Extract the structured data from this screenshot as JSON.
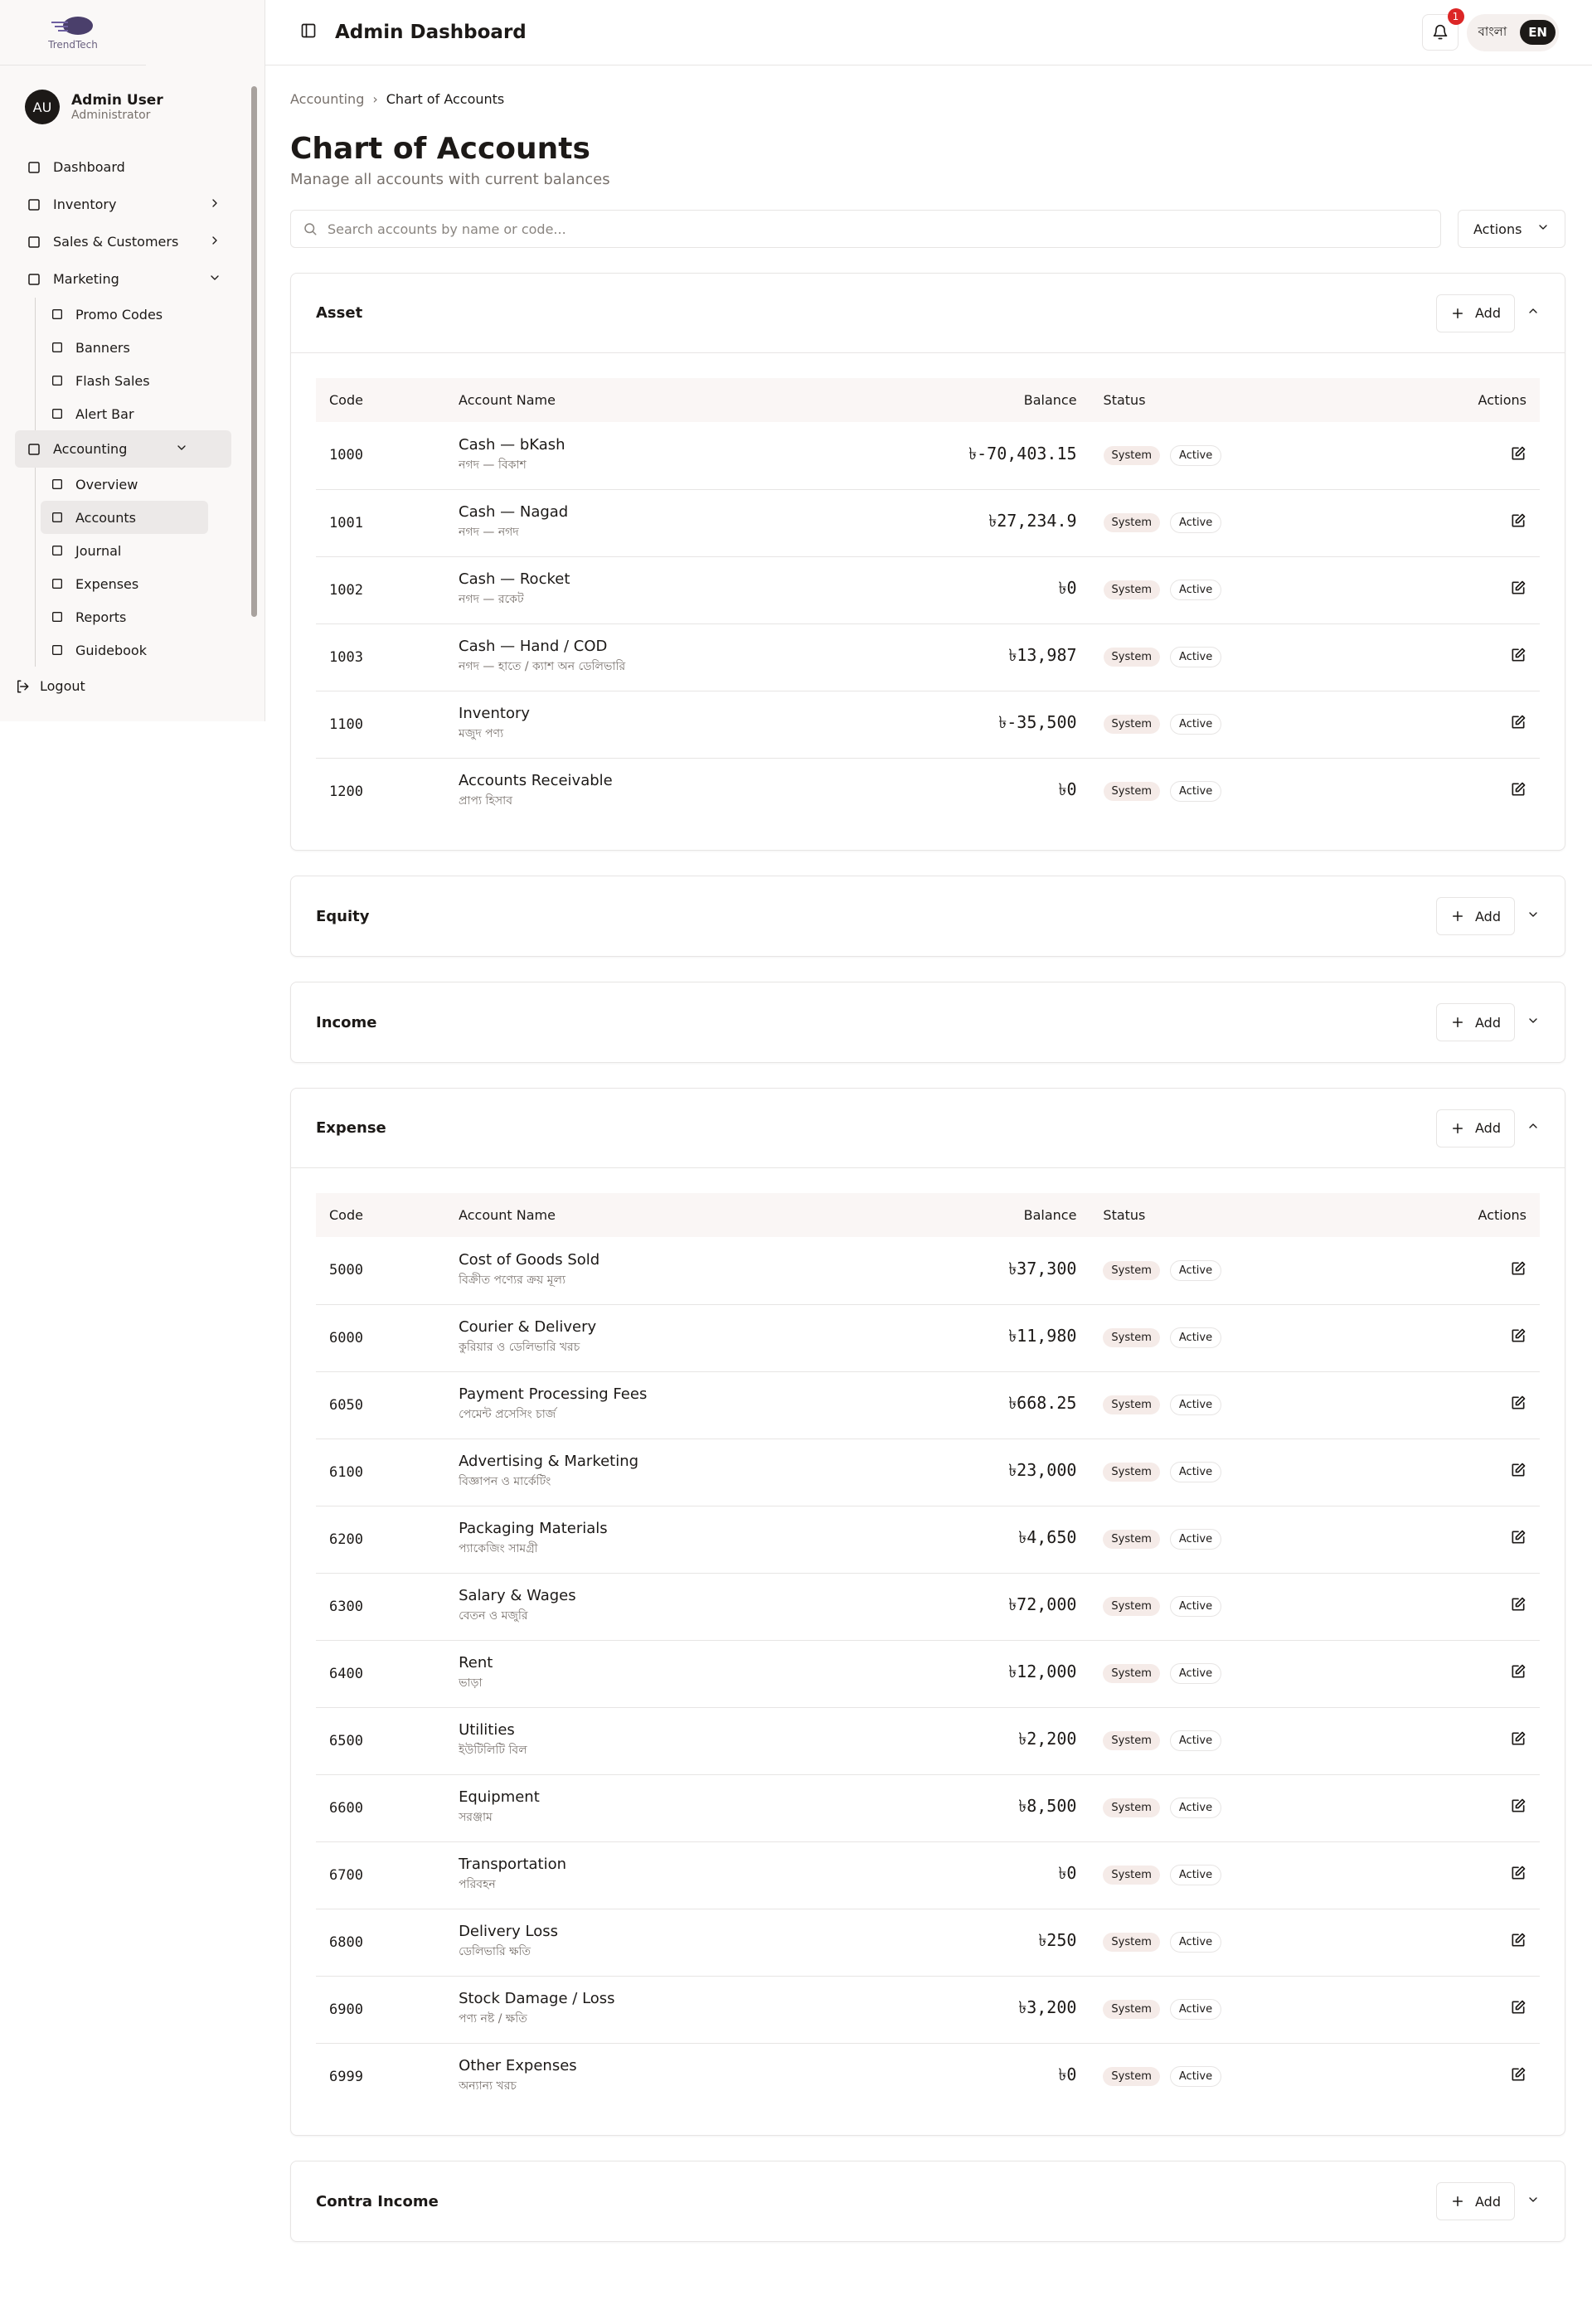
{
  "sidebar": {
    "logo": "TrendTech",
    "user": {
      "initials": "AU",
      "name": "Admin User",
      "role": "Administrator"
    },
    "nav": [
      {
        "label": "Dashboard"
      },
      {
        "label": "Inventory"
      },
      {
        "label": "Sales & Customers"
      },
      {
        "label": "Marketing",
        "children": [
          "Promo Codes",
          "Banners",
          "Flash Sales",
          "Alert Bar"
        ]
      },
      {
        "label": "Accounting",
        "children": [
          "Overview",
          "Accounts",
          "Journal",
          "Expenses",
          "Reports",
          "Guidebook"
        ]
      }
    ],
    "logout": "Logout"
  },
  "header": {
    "title": "Admin Dashboard",
    "notification_count": "1",
    "languages": [
      "বাংলা",
      "EN"
    ]
  },
  "breadcrumb": [
    "Accounting",
    "Chart of Accounts"
  ],
  "page": {
    "title": "Chart of Accounts",
    "subtitle": "Manage all accounts with current balances",
    "search_placeholder": "Search accounts by name or code...",
    "actions": "Actions"
  },
  "columns": [
    "Code",
    "Account Name",
    "Balance",
    "Status",
    "Actions"
  ],
  "add_label": "Add",
  "sections": [
    {
      "title": "Asset",
      "rows": [
        {
          "code": "1000",
          "name": "Cash — bKash",
          "name_bn": "নগদ — বিকাশ",
          "balance": "৳-70,403.15",
          "tags": [
            "System",
            "Active"
          ]
        },
        {
          "code": "1001",
          "name": "Cash — Nagad",
          "name_bn": "নগদ — নগদ",
          "balance": "৳27,234.9",
          "tags": [
            "System",
            "Active"
          ]
        },
        {
          "code": "1002",
          "name": "Cash — Rocket",
          "name_bn": "নগদ — রকেট",
          "balance": "৳0",
          "tags": [
            "System",
            "Active"
          ]
        },
        {
          "code": "1003",
          "name": "Cash — Hand / COD",
          "name_bn": "নগদ — হাতে / ক্যাশ অন ডেলিভারি",
          "balance": "৳13,987",
          "tags": [
            "System",
            "Active"
          ]
        },
        {
          "code": "1100",
          "name": "Inventory",
          "name_bn": "মজুদ পণ্য",
          "balance": "৳-35,500",
          "tags": [
            "System",
            "Active"
          ]
        },
        {
          "code": "1200",
          "name": "Accounts Receivable",
          "name_bn": "প্রাপ্য হিসাব",
          "balance": "৳0",
          "tags": [
            "System",
            "Active"
          ]
        }
      ]
    },
    {
      "title": "Equity"
    },
    {
      "title": "Income"
    },
    {
      "title": "Expense",
      "rows": [
        {
          "code": "5000",
          "name": "Cost of Goods Sold",
          "name_bn": "বিক্রীত পণ্যের ক্রয় মূল্য",
          "balance": "৳37,300",
          "tags": [
            "System",
            "Active"
          ]
        },
        {
          "code": "6000",
          "name": "Courier & Delivery",
          "name_bn": "কুরিয়ার ও ডেলিভারি খরচ",
          "balance": "৳11,980",
          "tags": [
            "System",
            "Active"
          ]
        },
        {
          "code": "6050",
          "name": "Payment Processing Fees",
          "name_bn": "পেমেন্ট প্রসেসিং চার্জ",
          "balance": "৳668.25",
          "tags": [
            "System",
            "Active"
          ]
        },
        {
          "code": "6100",
          "name": "Advertising & Marketing",
          "name_bn": "বিজ্ঞাপন ও মার্কেটিং",
          "balance": "৳23,000",
          "tags": [
            "System",
            "Active"
          ]
        },
        {
          "code": "6200",
          "name": "Packaging Materials",
          "name_bn": "প্যাকেজিং সামগ্রী",
          "balance": "৳4,650",
          "tags": [
            "System",
            "Active"
          ]
        },
        {
          "code": "6300",
          "name": "Salary & Wages",
          "name_bn": "বেতন ও মজুরি",
          "balance": "৳72,000",
          "tags": [
            "System",
            "Active"
          ]
        },
        {
          "code": "6400",
          "name": "Rent",
          "name_bn": "ভাড়া",
          "balance": "৳12,000",
          "tags": [
            "System",
            "Active"
          ]
        },
        {
          "code": "6500",
          "name": "Utilities",
          "name_bn": "ইউটিলিটি বিল",
          "balance": "৳2,200",
          "tags": [
            "System",
            "Active"
          ]
        },
        {
          "code": "6600",
          "name": "Equipment",
          "name_bn": "সরঞ্জাম",
          "balance": "৳8,500",
          "tags": [
            "System",
            "Active"
          ]
        },
        {
          "code": "6700",
          "name": "Transportation",
          "name_bn": "পরিবহন",
          "balance": "৳0",
          "tags": [
            "System",
            "Active"
          ]
        },
        {
          "code": "6800",
          "name": "Delivery Loss",
          "name_bn": "ডেলিভারি ক্ষতি",
          "balance": "৳250",
          "tags": [
            "System",
            "Active"
          ]
        },
        {
          "code": "6900",
          "name": "Stock Damage / Loss",
          "name_bn": "পণ্য নষ্ট / ক্ষতি",
          "balance": "৳3,200",
          "tags": [
            "System",
            "Active"
          ]
        },
        {
          "code": "6999",
          "name": "Other Expenses",
          "name_bn": "অন্যান্য খরচ",
          "balance": "৳0",
          "tags": [
            "System",
            "Active"
          ]
        }
      ]
    },
    {
      "title": "Contra Income"
    }
  ]
}
